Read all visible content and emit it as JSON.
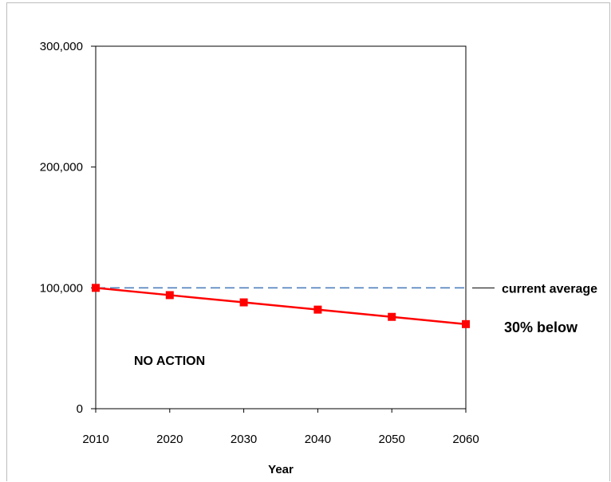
{
  "chart_data": {
    "type": "line",
    "title": "",
    "xlabel": "Year",
    "ylabel": "",
    "x": [
      2010,
      2020,
      2030,
      2040,
      2050,
      2060
    ],
    "xlim": [
      2010,
      2060
    ],
    "ylim": [
      0,
      300000
    ],
    "y_ticks": [
      "0",
      "100,000",
      "200,000",
      "300,000"
    ],
    "x_ticks": [
      "2010",
      "2020",
      "2030",
      "2040",
      "2050",
      "2060"
    ],
    "series": [
      {
        "values": [
          100000,
          94000,
          88000,
          82000,
          76000,
          70000
        ],
        "color": "#ff0000",
        "marker": "square"
      }
    ],
    "reference_line": {
      "value": 100000,
      "label": "current average",
      "color": "#4f81bd",
      "style": "dashed"
    },
    "annotations": {
      "end_label": "30%  below",
      "region_label": "NO ACTION"
    },
    "grid": false,
    "legend": "none"
  }
}
